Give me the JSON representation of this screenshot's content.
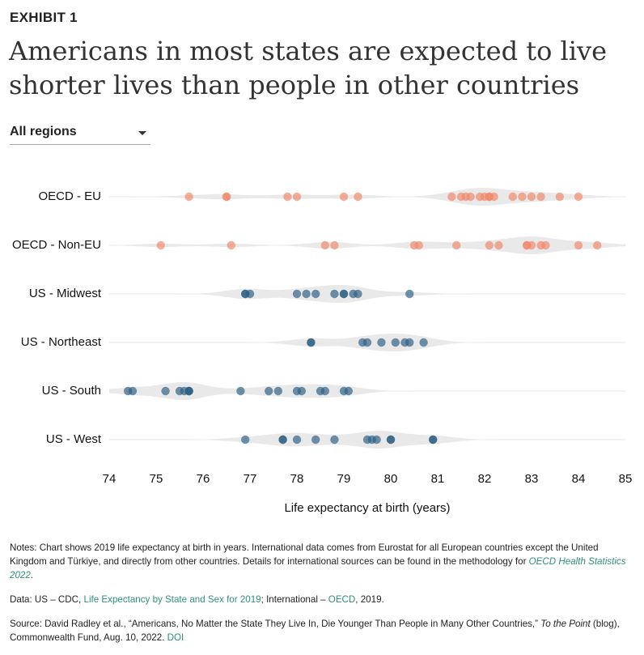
{
  "exhibit": "EXHIBIT 1",
  "title": "Americans in most states are expected to live shorter lives than people in other countries",
  "dropdown": "All regions",
  "chart_data": {
    "type": "strip",
    "x_label": "Life expectancy at birth (years)",
    "xlim": [
      74,
      85
    ],
    "xticks": [
      74,
      75,
      76,
      77,
      78,
      79,
      80,
      81,
      82,
      83,
      84,
      85
    ],
    "grid": true,
    "series": [
      {
        "name": "OECD - EU",
        "color": "#f0876a",
        "values": [
          75.7,
          76.5,
          76.5,
          77.8,
          78.0,
          79.0,
          79.3,
          81.3,
          81.5,
          81.6,
          81.7,
          81.9,
          82.0,
          82.1,
          82.1,
          82.2,
          82.6,
          82.8,
          83.0,
          83.2,
          83.6,
          84.0
        ]
      },
      {
        "name": "OECD - Non-EU",
        "color": "#f0876a",
        "values": [
          75.1,
          76.6,
          78.6,
          78.8,
          80.5,
          80.6,
          81.4,
          82.1,
          82.3,
          82.9,
          82.9,
          83.0,
          83.2,
          83.3,
          84.0,
          84.4
        ]
      },
      {
        "name": "US - Midwest",
        "color": "#2c5f83",
        "values": [
          76.9,
          76.9,
          77.0,
          78.0,
          78.2,
          78.4,
          78.8,
          79.0,
          79.0,
          79.2,
          79.3,
          80.4
        ]
      },
      {
        "name": "US - Northeast",
        "color": "#2c5f83",
        "values": [
          78.3,
          78.3,
          79.4,
          79.5,
          79.8,
          80.1,
          80.3,
          80.4,
          80.7
        ]
      },
      {
        "name": "US - South",
        "color": "#2c5f83",
        "values": [
          74.4,
          74.5,
          75.2,
          75.5,
          75.6,
          75.7,
          75.7,
          75.7,
          76.8,
          77.4,
          77.6,
          78.0,
          78.1,
          78.5,
          78.6,
          79.0,
          79.1
        ]
      },
      {
        "name": "US - West",
        "color": "#2c5f83",
        "values": [
          76.9,
          77.7,
          77.7,
          78.0,
          78.4,
          78.8,
          79.5,
          79.6,
          79.7,
          80.0,
          80.0,
          80.9,
          80.9
        ]
      }
    ]
  },
  "notes": [
    [
      "Notes: Chart shows 2019 life expectancy at birth in years. International data comes from Eurostat for all European countries except the United Kingdom and Türkiye, and directly from other countries. Details for international sources can be found in the methodology for ",
      "OECD Health Statistics 2022",
      "."
    ],
    [
      "Data: US – CDC, ",
      "Life Expectancy by State and Sex for 2019",
      "; International – ",
      "OECD",
      ", 2019."
    ],
    [
      "Source: David Radley et al., “Americans, No Matter the State They Live In, Die Younger Than People in Many Other Countries,” ",
      "To the Point",
      " (blog), Commonwealth Fund, Aug. 10, 2022. ",
      "DOI"
    ]
  ]
}
